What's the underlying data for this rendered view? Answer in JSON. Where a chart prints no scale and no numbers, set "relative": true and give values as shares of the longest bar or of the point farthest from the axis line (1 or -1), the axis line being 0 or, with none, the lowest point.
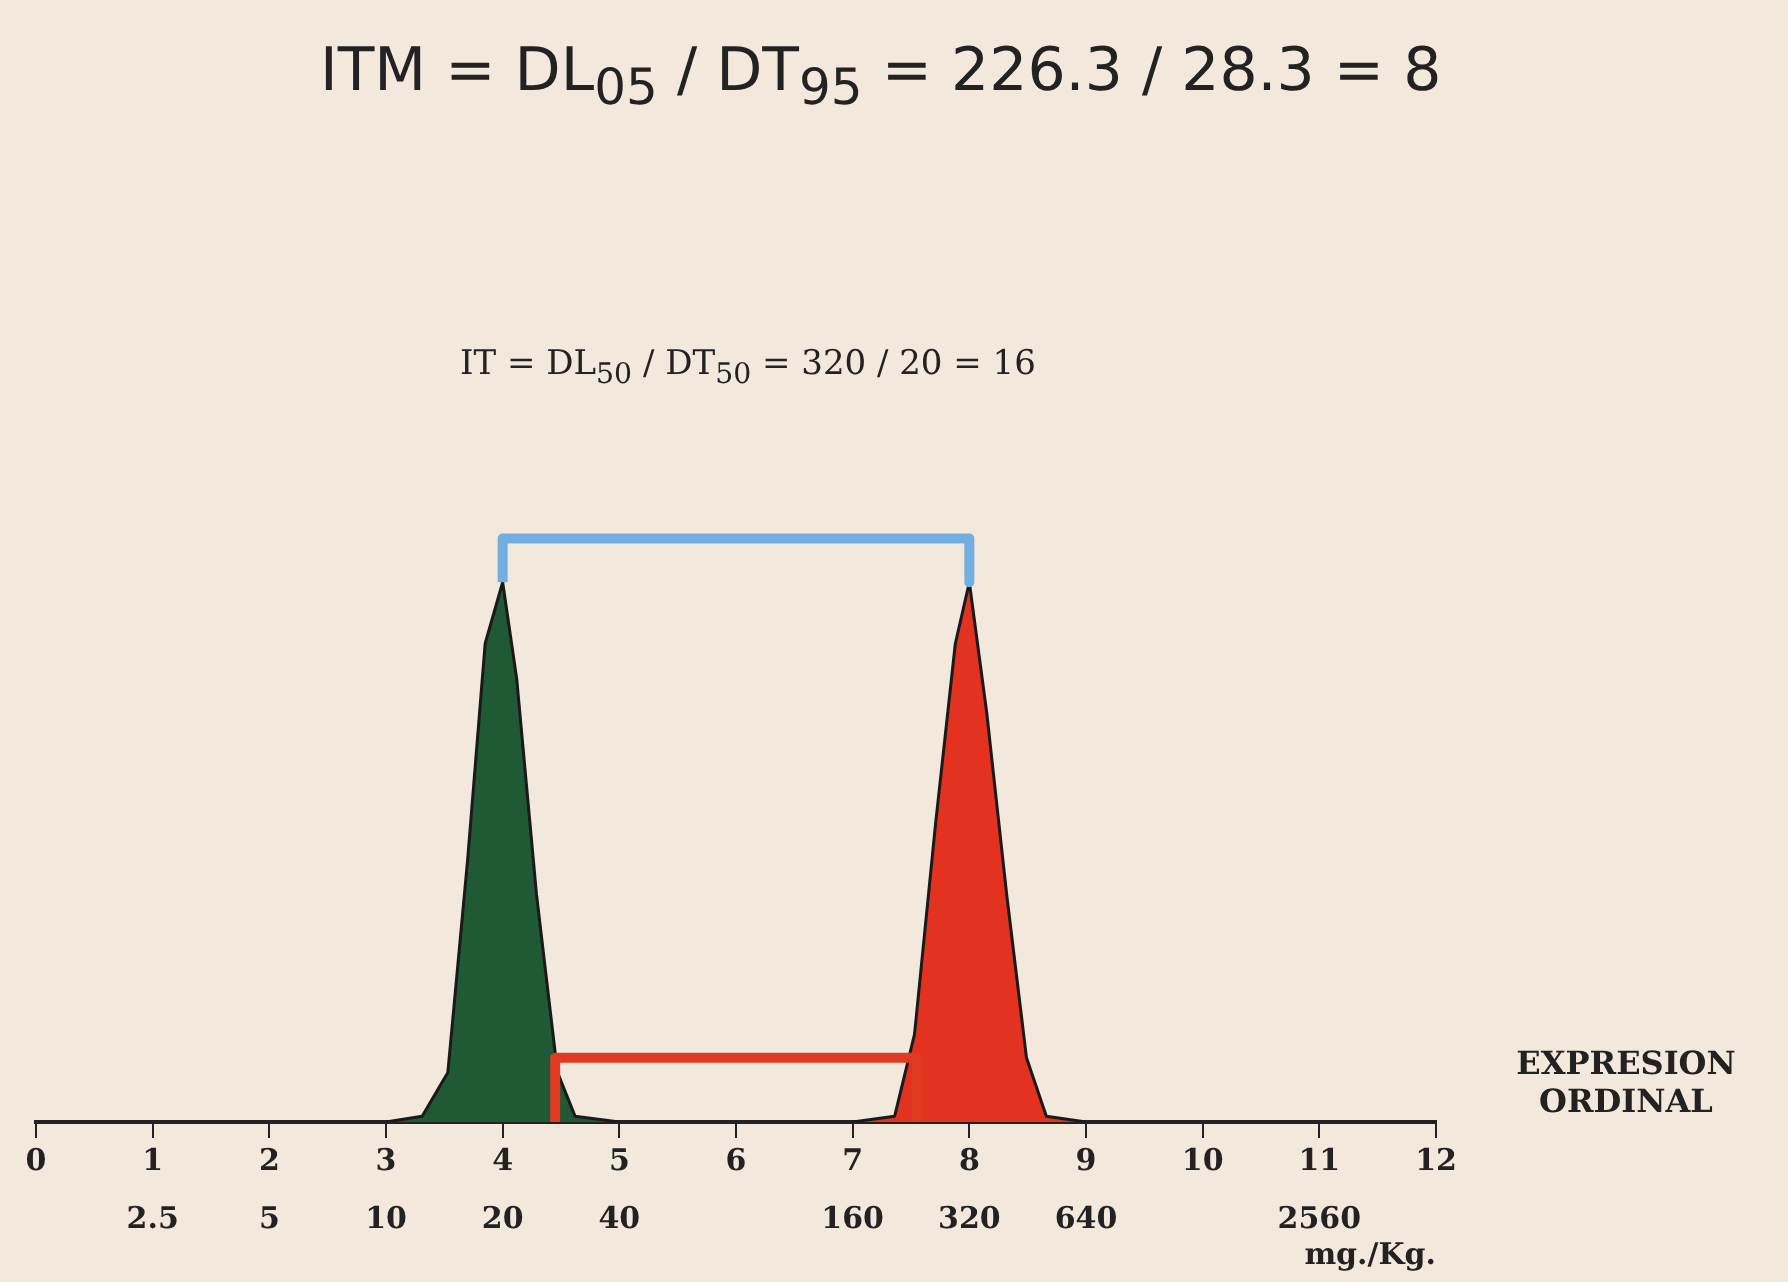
{
  "chart_data": {
    "type": "area",
    "relative": true,
    "xlabel": "EXPRESION ORDINAL",
    "x2label": "mg./Kg.",
    "xlim": [
      0,
      12
    ],
    "xticks": [
      0,
      1,
      2,
      3,
      4,
      5,
      6,
      7,
      8,
      9,
      10,
      11,
      12
    ],
    "x2lim": [
      1.25,
      5120
    ],
    "x2ticks": [
      2.5,
      5,
      10,
      20,
      40,
      160,
      320,
      640,
      2560
    ],
    "log": "x2",
    "series": [
      {
        "color": "#1f5a34",
        "x": [
          3.0,
          3.31,
          3.53,
          3.7,
          3.85,
          4.0,
          4.12,
          4.29,
          4.47,
          4.62,
          5.0
        ],
        "values": [
          0,
          0.01,
          0.085,
          0.45,
          0.82,
          0.925,
          0.76,
          0.39,
          0.085,
          0.01,
          0
        ]
      },
      {
        "color": "#e3321f",
        "x": [
          7.0,
          7.36,
          7.53,
          7.71,
          7.88,
          8.0,
          8.15,
          8.32,
          8.49,
          8.66,
          9.0
        ],
        "values": [
          0,
          0.01,
          0.15,
          0.51,
          0.82,
          0.925,
          0.7,
          0.39,
          0.11,
          0.01,
          0
        ]
      },
      {
        "type": "line",
        "color": "#72aee0",
        "x": [
          4,
          4,
          8,
          8
        ],
        "values": [
          0.925,
          1,
          1,
          0.925
        ]
      },
      {
        "type": "line",
        "color": "#e03a22",
        "x": [
          4.45,
          4.45,
          7.55,
          7.55
        ],
        "values": [
          0,
          0.11,
          0.11,
          0
        ]
      }
    ],
    "annotations": [
      "ITM = DL$_{05}$ / DT$_{95}$ = 226.3 / 28.3 = 8",
      "IT = DL$_{50}$ / DT$_{50}$ = 320 / 20 = 16"
    ],
    "grid": false,
    "legend": false,
    "tick_labels": "x"
  }
}
